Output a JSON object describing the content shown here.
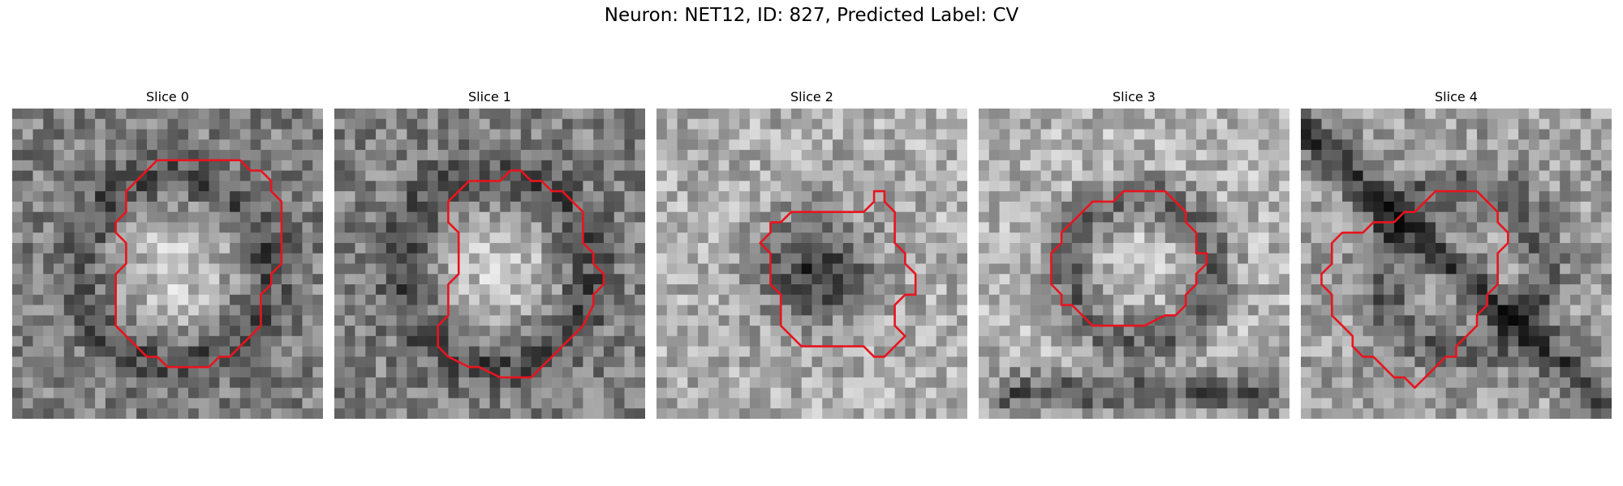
{
  "figure": {
    "title": "Neuron: NET12, ID: 827, Predicted Label: CV",
    "contour_color": "#e8141e"
  },
  "panels": [
    {
      "title": "Slice 0",
      "seed": 11,
      "pattern": "cell-bright",
      "contour": [
        [
          16,
          5
        ],
        [
          22,
          5
        ],
        [
          23,
          6
        ],
        [
          24,
          6
        ],
        [
          25,
          7
        ],
        [
          25,
          8
        ],
        [
          26,
          9
        ],
        [
          26,
          15
        ],
        [
          25,
          16
        ],
        [
          25,
          17
        ],
        [
          24,
          18
        ],
        [
          24,
          21
        ],
        [
          23,
          22
        ],
        [
          22,
          23
        ],
        [
          21,
          24
        ],
        [
          20,
          24
        ],
        [
          19,
          25
        ],
        [
          15,
          25
        ],
        [
          14,
          24
        ],
        [
          13,
          24
        ],
        [
          12,
          23
        ],
        [
          11,
          22
        ],
        [
          10,
          21
        ],
        [
          10,
          16
        ],
        [
          11,
          15
        ],
        [
          11,
          13
        ],
        [
          10,
          12
        ],
        [
          10,
          11
        ],
        [
          11,
          10
        ],
        [
          11,
          8
        ],
        [
          12,
          7
        ],
        [
          13,
          6
        ],
        [
          14,
          5
        ],
        [
          15,
          5
        ],
        [
          16,
          5
        ]
      ]
    },
    {
      "title": "Slice 1",
      "seed": 23,
      "pattern": "cell-bright",
      "contour": [
        [
          12,
          8
        ],
        [
          13,
          7
        ],
        [
          14,
          7
        ],
        [
          15,
          7
        ],
        [
          16,
          7
        ],
        [
          17,
          6
        ],
        [
          18,
          6
        ],
        [
          19,
          7
        ],
        [
          20,
          7
        ],
        [
          21,
          8
        ],
        [
          22,
          8
        ],
        [
          23,
          9
        ],
        [
          24,
          10
        ],
        [
          24,
          13
        ],
        [
          25,
          14
        ],
        [
          25,
          15
        ],
        [
          26,
          16
        ],
        [
          26,
          17
        ],
        [
          25,
          18
        ],
        [
          25,
          19
        ],
        [
          24,
          21
        ],
        [
          23,
          22
        ],
        [
          22,
          23
        ],
        [
          21,
          24
        ],
        [
          20,
          25
        ],
        [
          19,
          26
        ],
        [
          16,
          26
        ],
        [
          14,
          25
        ],
        [
          13,
          25
        ],
        [
          11,
          24
        ],
        [
          10,
          23
        ],
        [
          10,
          21
        ],
        [
          11,
          20
        ],
        [
          11,
          17
        ],
        [
          12,
          16
        ],
        [
          12,
          12
        ],
        [
          11,
          11
        ],
        [
          11,
          9
        ],
        [
          12,
          8
        ]
      ]
    },
    {
      "title": "Slice 2",
      "seed": 37,
      "pattern": "cell-dark",
      "contour": [
        [
          11,
          11
        ],
        [
          12,
          11
        ],
        [
          13,
          10
        ],
        [
          14,
          10
        ],
        [
          15,
          10
        ],
        [
          16,
          10
        ],
        [
          17,
          10
        ],
        [
          18,
          10
        ],
        [
          19,
          10
        ],
        [
          20,
          10
        ],
        [
          21,
          9
        ],
        [
          21,
          8
        ],
        [
          22,
          8
        ],
        [
          22,
          9
        ],
        [
          23,
          10
        ],
        [
          23,
          13
        ],
        [
          24,
          14
        ],
        [
          24,
          15
        ],
        [
          25,
          16
        ],
        [
          25,
          18
        ],
        [
          24,
          18
        ],
        [
          23,
          19
        ],
        [
          23,
          20
        ],
        [
          23,
          21
        ],
        [
          24,
          22
        ],
        [
          23,
          23
        ],
        [
          22,
          24
        ],
        [
          21,
          24
        ],
        [
          20,
          23
        ],
        [
          19,
          23
        ],
        [
          18,
          23
        ],
        [
          17,
          23
        ],
        [
          16,
          23
        ],
        [
          15,
          23
        ],
        [
          14,
          23
        ],
        [
          13,
          22
        ],
        [
          12,
          21
        ],
        [
          12,
          18
        ],
        [
          11,
          17
        ],
        [
          11,
          14
        ],
        [
          10,
          13
        ],
        [
          11,
          12
        ],
        [
          11,
          11
        ]
      ]
    },
    {
      "title": "Slice 3",
      "seed": 53,
      "pattern": "ring",
      "contour": [
        [
          13,
          9
        ],
        [
          14,
          8
        ],
        [
          17,
          8
        ],
        [
          18,
          8
        ],
        [
          19,
          9
        ],
        [
          20,
          10
        ],
        [
          20,
          11
        ],
        [
          21,
          12
        ],
        [
          21,
          14
        ],
        [
          22,
          14
        ],
        [
          22,
          15
        ],
        [
          21,
          16
        ],
        [
          21,
          17
        ],
        [
          20,
          18
        ],
        [
          20,
          19
        ],
        [
          19,
          20
        ],
        [
          18,
          20
        ],
        [
          16,
          21
        ],
        [
          14,
          21
        ],
        [
          13,
          21
        ],
        [
          12,
          21
        ],
        [
          11,
          21
        ],
        [
          10,
          20
        ],
        [
          9,
          19
        ],
        [
          8,
          19
        ],
        [
          8,
          18
        ],
        [
          7,
          17
        ],
        [
          7,
          14
        ],
        [
          8,
          13
        ],
        [
          8,
          12
        ],
        [
          9,
          11
        ],
        [
          10,
          10
        ],
        [
          11,
          9
        ],
        [
          12,
          9
        ],
        [
          13,
          9
        ]
      ]
    },
    {
      "title": "Slice 4",
      "seed": 71,
      "pattern": "ring-diag",
      "contour": [
        [
          9,
          11
        ],
        [
          10,
          10
        ],
        [
          11,
          10
        ],
        [
          12,
          9
        ],
        [
          13,
          8
        ],
        [
          14,
          8
        ],
        [
          15,
          8
        ],
        [
          17,
          8
        ],
        [
          18,
          9
        ],
        [
          19,
          10
        ],
        [
          19,
          11
        ],
        [
          20,
          12
        ],
        [
          20,
          13
        ],
        [
          19,
          14
        ],
        [
          19,
          17
        ],
        [
          18,
          18
        ],
        [
          18,
          19
        ],
        [
          17,
          20
        ],
        [
          17,
          21
        ],
        [
          16,
          22
        ],
        [
          15,
          23
        ],
        [
          15,
          24
        ],
        [
          14,
          24
        ],
        [
          13,
          25
        ],
        [
          12,
          26
        ],
        [
          11,
          27
        ],
        [
          10,
          26
        ],
        [
          9,
          26
        ],
        [
          8,
          25
        ],
        [
          7,
          24
        ],
        [
          6,
          24
        ],
        [
          5,
          23
        ],
        [
          5,
          22
        ],
        [
          4,
          21
        ],
        [
          3,
          20
        ],
        [
          3,
          18
        ],
        [
          2,
          17
        ],
        [
          2,
          16
        ],
        [
          3,
          15
        ],
        [
          3,
          13
        ],
        [
          4,
          12
        ],
        [
          5,
          12
        ],
        [
          6,
          12
        ],
        [
          7,
          11
        ],
        [
          8,
          11
        ],
        [
          9,
          11
        ]
      ]
    }
  ]
}
